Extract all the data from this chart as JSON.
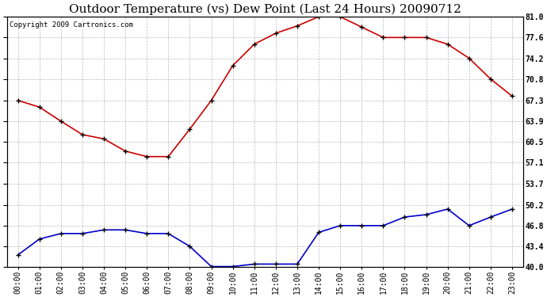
{
  "title": "Outdoor Temperature (vs) Dew Point (Last 24 Hours) 20090712",
  "copyright": "Copyright 2009 Cartronics.com",
  "hours": [
    "00:00",
    "01:00",
    "02:00",
    "03:00",
    "04:00",
    "05:00",
    "06:00",
    "07:00",
    "08:00",
    "09:00",
    "10:00",
    "11:00",
    "12:00",
    "13:00",
    "14:00",
    "15:00",
    "16:00",
    "17:00",
    "18:00",
    "19:00",
    "20:00",
    "21:00",
    "22:00",
    "23:00"
  ],
  "temp": [
    67.3,
    66.2,
    63.9,
    61.7,
    61.0,
    59.0,
    58.1,
    58.1,
    62.6,
    67.3,
    73.0,
    76.5,
    78.3,
    79.5,
    81.0,
    81.0,
    79.3,
    77.6,
    77.6,
    77.6,
    76.5,
    74.2,
    70.8,
    68.0
  ],
  "dewpoint": [
    42.0,
    44.6,
    45.5,
    45.5,
    46.1,
    46.1,
    45.5,
    45.5,
    43.4,
    40.1,
    40.1,
    40.5,
    40.5,
    40.5,
    45.7,
    46.8,
    46.8,
    46.8,
    48.2,
    48.6,
    49.5,
    46.8,
    48.2,
    49.5
  ],
  "temp_color": "#cc0000",
  "dewpoint_color": "#0000cc",
  "background_color": "#ffffff",
  "plot_bg_color": "#ffffff",
  "grid_color": "#aaaaaa",
  "ytick_labels": [
    "40.0",
    "43.4",
    "46.8",
    "50.2",
    "53.7",
    "57.1",
    "60.5",
    "63.9",
    "67.3",
    "70.8",
    "74.2",
    "77.6",
    "81.0"
  ],
  "ytick_vals": [
    40.0,
    43.4,
    46.8,
    50.2,
    53.7,
    57.1,
    60.5,
    63.9,
    67.3,
    70.8,
    74.2,
    77.6,
    81.0
  ],
  "ymin": 40.0,
  "ymax": 81.0,
  "title_fontsize": 11,
  "tick_fontsize": 7,
  "copyright_fontsize": 6.5
}
